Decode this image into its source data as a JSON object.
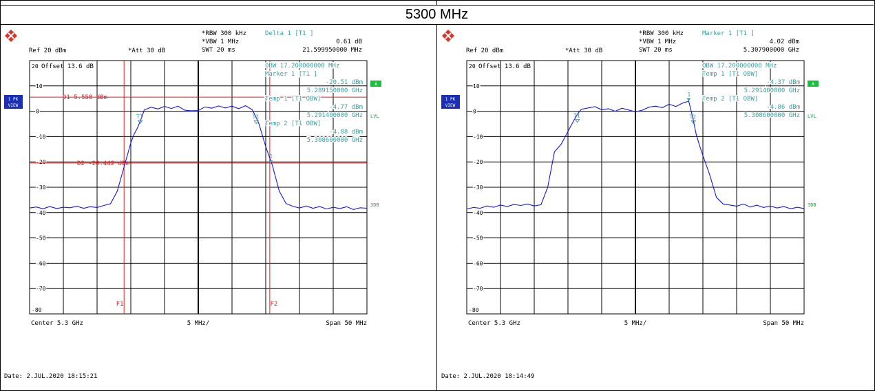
{
  "title": "5300 MHz",
  "colors": {
    "trace": "#1515e6",
    "marker_text": "#3aa0a0",
    "line": "#e02020",
    "grid": "#000000"
  },
  "chart_data": [
    {
      "type": "line",
      "title": "",
      "ref_label": "Ref  20 dBm",
      "att_label": "*Att  30 dB",
      "rbw_label": "*RBW 300 kHz",
      "vbw_label": "*VBW 1 MHz",
      "swt_label": "SWT 20 ms",
      "marker_title": "Delta 1 [T1 ]",
      "marker_value_1": "0.61 dB",
      "marker_value_2": "21.599950000 MHz",
      "offset_label": "Offset  13.6 dB",
      "side_labels": {
        "trace": "1 PK",
        "view": "VIEW",
        "a": "A",
        "lvl": "LVL",
        "db": "3DB"
      },
      "info_lines": [
        "OBW 17.200000000 MHz",
        "Marker 1 [T1 ]",
        "-20.51 dBm",
        "5.289150000 GHz",
        "Temp 1  [T1 OBW]",
        "-4.77 dBm",
        "5.291400000 GHz",
        "Temp 2  [T1 OBW]",
        "-4.88 dBm",
        "5.308600000 GHz"
      ],
      "bottom": {
        "center": "Center 5.3 GHz",
        "div": "5 MHz/",
        "span": "Span 50 MHz"
      },
      "date": "Date: 2.JUL.2020  18:15:21",
      "y_ticks": [
        "20",
        "10",
        "0",
        "-10",
        "-20",
        "-30",
        "-40",
        "-50",
        "-60",
        "-70",
        "-80"
      ],
      "ylim": [
        -80,
        20
      ],
      "xlim_mhz": [
        5275,
        5325
      ],
      "display_lines": [
        {
          "name": "D1",
          "label": "D1 5.558 dBm",
          "level": 5.558
        },
        {
          "name": "D2",
          "label": "D2 -20.442 dBm",
          "level": -20.442
        }
      ],
      "freq_lines": [
        {
          "name": "F1",
          "x": 5289.0
        },
        {
          "name": "F2",
          "x": 5310.6
        }
      ],
      "markers": [
        {
          "name": "T1",
          "x": 5291.4,
          "y": -4.77
        },
        {
          "name": "T2",
          "x": 5308.6,
          "y": -4.88
        },
        {
          "name": "1",
          "x": 5310.75,
          "y": -20.51
        }
      ],
      "series": [
        {
          "x": [
            5275,
            5276,
            5277,
            5278,
            5279,
            5280,
            5281,
            5282,
            5283,
            5284,
            5285,
            5286,
            5287,
            5288,
            5289,
            5290,
            5290.5,
            5291,
            5291.5,
            5292,
            5293,
            5294,
            5295,
            5296,
            5297,
            5298,
            5299,
            5300,
            5301,
            5302,
            5303,
            5304,
            5305,
            5306,
            5307,
            5308,
            5308.5,
            5309,
            5309.5,
            5310,
            5311,
            5312,
            5313,
            5314,
            5315,
            5316,
            5317,
            5318,
            5319,
            5320,
            5321,
            5322,
            5323,
            5324,
            5325
          ],
          "y": [
            -38.2,
            -37.8,
            -38.5,
            -37.6,
            -38.4,
            -37.9,
            -38.1,
            -37.5,
            -38.3,
            -37.7,
            -38.0,
            -37.2,
            -36.5,
            -31.5,
            -22.0,
            -12.5,
            -9.0,
            -6.5,
            -3.2,
            0.5,
            1.6,
            0.9,
            1.9,
            1.1,
            2.0,
            0.4,
            0.2,
            0.3,
            1.7,
            1.2,
            2.1,
            1.3,
            2.0,
            1.0,
            2.2,
            0.6,
            -2.0,
            -5.0,
            -9.5,
            -14.0,
            -21.5,
            -31.5,
            -36.4,
            -37.5,
            -38.2,
            -37.4,
            -38.3,
            -37.6,
            -38.6,
            -37.9,
            -38.4,
            -37.7,
            -38.8,
            -38.1,
            -38.3
          ]
        }
      ]
    },
    {
      "type": "line",
      "title": "",
      "ref_label": "Ref  20 dBm",
      "att_label": "*Att  30 dB",
      "rbw_label": "*RBW 300 kHz",
      "vbw_label": "*VBW 1 MHz",
      "swt_label": "SWT 20 ms",
      "marker_title": "Marker 1 [T1 ]",
      "marker_value_1": "4.02 dBm",
      "marker_value_2": "5.307900000 GHz",
      "offset_label": "Offset  13.6 dB",
      "side_labels": {
        "trace": "1 PK",
        "view": "VIEW",
        "a": "A",
        "lvl": "LVL",
        "db": "3DB"
      },
      "info_lines": [
        "OBW 17.200000000 MHz",
        "Temp 1  [T1 OBW]",
        "-4.37 dBm",
        "5.291400000 GHz",
        "Temp 2  [T1 OBW]",
        "-4.86 dBm",
        "5.308600000 GHz"
      ],
      "bottom": {
        "center": "Center 5.3 GHz",
        "div": "5 MHz/",
        "span": "Span 50 MHz"
      },
      "date": "Date: 2.JUL.2020  18:14:49",
      "y_ticks": [
        "20",
        "10",
        "0",
        "-10",
        "-20",
        "-30",
        "-40",
        "-50",
        "-60",
        "-70",
        "-80"
      ],
      "ylim": [
        -80,
        20
      ],
      "xlim_mhz": [
        5275,
        5325
      ],
      "display_lines": [],
      "freq_lines": [],
      "markers": [
        {
          "name": "T1",
          "x": 5291.4,
          "y": -4.37
        },
        {
          "name": "T2",
          "x": 5308.6,
          "y": -4.86
        },
        {
          "name": "1",
          "x": 5307.9,
          "y": 4.02
        }
      ],
      "series": [
        {
          "x": [
            5275,
            5276,
            5277,
            5278,
            5279,
            5280,
            5281,
            5282,
            5283,
            5284,
            5285,
            5286,
            5287,
            5288,
            5289,
            5290,
            5290.5,
            5291,
            5291.5,
            5292,
            5293,
            5294,
            5295,
            5296,
            5297,
            5298,
            5299,
            5300,
            5301,
            5302,
            5303,
            5304,
            5305,
            5306,
            5307,
            5307.9,
            5308.5,
            5309,
            5309.5,
            5310,
            5311,
            5312,
            5313,
            5314,
            5315,
            5316,
            5317,
            5318,
            5319,
            5320,
            5321,
            5322,
            5323,
            5324,
            5325
          ],
          "y": [
            -38.6,
            -38.0,
            -38.3,
            -37.4,
            -37.9,
            -37.0,
            -37.6,
            -36.8,
            -37.2,
            -36.6,
            -37.4,
            -36.9,
            -30.0,
            -16.0,
            -13.0,
            -8.0,
            -5.5,
            -3.0,
            -0.8,
            0.8,
            1.3,
            1.8,
            0.6,
            1.0,
            0.0,
            1.2,
            0.5,
            -0.2,
            0.4,
            1.6,
            2.0,
            1.4,
            2.8,
            1.9,
            3.2,
            4.0,
            -2.5,
            -9.0,
            -13.5,
            -17.5,
            -25.0,
            -34.0,
            -36.6,
            -37.0,
            -37.5,
            -36.6,
            -37.8,
            -37.1,
            -38.0,
            -37.4,
            -38.2,
            -37.6,
            -38.5,
            -37.9,
            -38.4
          ]
        }
      ]
    }
  ]
}
